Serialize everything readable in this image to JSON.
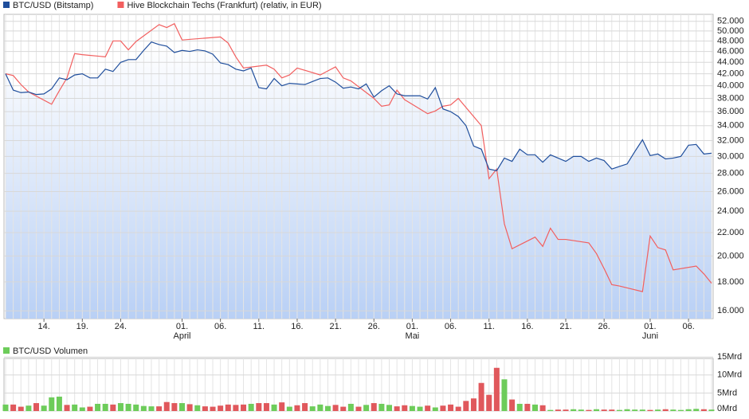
{
  "chart_data": [
    {
      "type": "line",
      "log": true,
      "grid": true,
      "area_gradient": [
        "#ffffff",
        "#b9d0f5"
      ],
      "xlim": [
        "03-09",
        "06-09"
      ],
      "ylim": [
        15500,
        53500
      ],
      "yticks": [
        {
          "value": 16000,
          "label": "16.000"
        },
        {
          "value": 18000,
          "label": "18.000"
        },
        {
          "value": 20000,
          "label": "20.000"
        },
        {
          "value": 22000,
          "label": "22.000"
        },
        {
          "value": 24000,
          "label": "24.000"
        },
        {
          "value": 26000,
          "label": "26.000"
        },
        {
          "value": 28000,
          "label": "28.000"
        },
        {
          "value": 30000,
          "label": "30.000"
        },
        {
          "value": 32000,
          "label": "32.000"
        },
        {
          "value": 34000,
          "label": "34.000"
        },
        {
          "value": 36000,
          "label": "36.000"
        },
        {
          "value": 38000,
          "label": "38.000"
        },
        {
          "value": 40000,
          "label": "40.000"
        },
        {
          "value": 42000,
          "label": "42.000"
        },
        {
          "value": 44000,
          "label": "44.000"
        },
        {
          "value": 46000,
          "label": "46.000"
        },
        {
          "value": 48000,
          "label": "48.000"
        },
        {
          "value": 50000,
          "label": "50.000"
        },
        {
          "value": 52000,
          "label": "52.000"
        }
      ],
      "xticks": [
        {
          "value": "03-14",
          "label": "14."
        },
        {
          "value": "03-19",
          "label": "19."
        },
        {
          "value": "03-24",
          "label": "24."
        },
        {
          "value": "04-01",
          "label": "01."
        },
        {
          "value": "04-06",
          "label": "06."
        },
        {
          "value": "04-11",
          "label": "11."
        },
        {
          "value": "04-16",
          "label": "16."
        },
        {
          "value": "04-21",
          "label": "21."
        },
        {
          "value": "04-26",
          "label": "26."
        },
        {
          "value": "05-01",
          "label": "01."
        },
        {
          "value": "05-06",
          "label": "06."
        },
        {
          "value": "05-11",
          "label": "11."
        },
        {
          "value": "05-16",
          "label": "16."
        },
        {
          "value": "05-21",
          "label": "21."
        },
        {
          "value": "05-26",
          "label": "26."
        },
        {
          "value": "06-01",
          "label": "01."
        },
        {
          "value": "06-06",
          "label": "06."
        }
      ],
      "month_labels": [
        {
          "value": "04-01",
          "label": "April"
        },
        {
          "value": "05-01",
          "label": "Mai"
        },
        {
          "value": "06-01",
          "label": "Juni"
        }
      ],
      "series": [
        {
          "name": "BTC/USD (Bitstamp)",
          "color": "#1f4e9c",
          "area": true,
          "x": [
            "03-09",
            "03-10",
            "03-11",
            "03-12",
            "03-13",
            "03-14",
            "03-15",
            "03-16",
            "03-17",
            "03-18",
            "03-19",
            "03-20",
            "03-21",
            "03-22",
            "03-23",
            "03-24",
            "03-25",
            "03-26",
            "03-27",
            "03-28",
            "03-29",
            "03-30",
            "03-31",
            "04-01",
            "04-02",
            "04-03",
            "04-04",
            "04-05",
            "04-06",
            "04-07",
            "04-08",
            "04-09",
            "04-10",
            "04-11",
            "04-12",
            "04-13",
            "04-14",
            "04-15",
            "04-16",
            "04-17",
            "04-18",
            "04-19",
            "04-20",
            "04-21",
            "04-22",
            "04-23",
            "04-24",
            "04-25",
            "04-26",
            "04-27",
            "04-28",
            "04-29",
            "04-30",
            "05-01",
            "05-02",
            "05-03",
            "05-04",
            "05-05",
            "05-06",
            "05-07",
            "05-08",
            "05-09",
            "05-10",
            "05-11",
            "05-12",
            "05-13",
            "05-14",
            "05-15",
            "05-16",
            "05-17",
            "05-18",
            "05-19",
            "05-20",
            "05-21",
            "05-22",
            "05-23",
            "05-24",
            "05-25",
            "05-26",
            "05-27",
            "05-28",
            "05-29",
            "05-30",
            "05-31",
            "06-01",
            "06-02",
            "06-03",
            "06-04",
            "06-05",
            "06-06",
            "06-07",
            "06-08",
            "06-09"
          ],
          "values": [
            42000,
            39300,
            38900,
            39000,
            38600,
            38700,
            39500,
            41300,
            41000,
            41800,
            42000,
            41300,
            41300,
            42800,
            42400,
            44000,
            44500,
            44500,
            46200,
            47800,
            47300,
            47000,
            45800,
            46200,
            46000,
            46300,
            46100,
            45500,
            43900,
            43600,
            42800,
            42500,
            43000,
            39700,
            39500,
            41200,
            40000,
            40400,
            40300,
            40200,
            40700,
            41200,
            41300,
            40600,
            39600,
            39800,
            39500,
            40300,
            38200,
            39200,
            40000,
            38700,
            38400,
            38400,
            38400,
            37900,
            39700,
            36400,
            36000,
            35300,
            34000,
            31300,
            30900,
            28500,
            28300,
            29800,
            29400,
            30900,
            30200,
            30200,
            29300,
            30200,
            29800,
            29400,
            30000,
            30000,
            29400,
            29800,
            29500,
            28500,
            28800,
            29100,
            30600,
            32100,
            30100,
            30300,
            29700,
            29800,
            30000,
            31400,
            31500,
            30300,
            30400
          ]
        },
        {
          "name": "Hive Blockchain Techs (Frankfurt) (relativ, in EUR)",
          "color": "#f25f5f",
          "x": [
            "03-09",
            "03-10",
            "03-11",
            "03-12",
            "03-15",
            "03-16",
            "03-17",
            "03-18",
            "03-19",
            "03-22",
            "03-23",
            "03-24",
            "03-25",
            "03-26",
            "03-29",
            "03-30",
            "03-31",
            "04-01",
            "04-06",
            "04-07",
            "04-08",
            "04-09",
            "04-12",
            "04-13",
            "04-14",
            "04-15",
            "04-16",
            "04-19",
            "04-20",
            "04-21",
            "04-22",
            "04-23",
            "04-26",
            "04-27",
            "04-28",
            "04-29",
            "04-30",
            "05-03",
            "05-04",
            "05-05",
            "05-06",
            "05-07",
            "05-10",
            "05-11",
            "05-12",
            "05-13",
            "05-14",
            "05-17",
            "05-18",
            "05-19",
            "05-20",
            "05-21",
            "05-24",
            "05-25",
            "05-26",
            "05-27",
            "05-28",
            "05-31",
            "06-01",
            "06-02",
            "06-03",
            "06-04",
            "06-07",
            "06-08",
            "06-09"
          ],
          "values": [
            42000,
            41700,
            40200,
            39000,
            37100,
            39200,
            41300,
            45600,
            45400,
            45000,
            48000,
            48000,
            46300,
            47900,
            51300,
            50700,
            51500,
            48200,
            48800,
            47600,
            45000,
            43000,
            43500,
            42800,
            41300,
            41800,
            43000,
            41800,
            42500,
            43200,
            41300,
            40800,
            38000,
            36800,
            37000,
            39300,
            37800,
            35700,
            36100,
            36800,
            37000,
            38000,
            34000,
            27400,
            28500,
            22800,
            20600,
            21600,
            20800,
            22400,
            21400,
            21400,
            21100,
            20200,
            19000,
            17800,
            17700,
            17300,
            21700,
            20700,
            20500,
            18900,
            19200,
            18600,
            17900
          ]
        }
      ]
    },
    {
      "type": "volume",
      "legend": "BTC/USD Volumen",
      "up_color": "#6dcc5a",
      "down_color": "#e0585c",
      "legend_color": "#6dcc5a",
      "xlim": [
        "03-09",
        "06-09"
      ],
      "ylim": [
        0,
        14.6
      ],
      "yticks": [
        {
          "value": 0,
          "label": "0Mrd"
        },
        {
          "value": 5,
          "label": "5Mrd"
        },
        {
          "value": 10,
          "label": "10Mrd"
        },
        {
          "value": 15,
          "label": "15Mrd"
        }
      ],
      "values": [
        1.8,
        1.8,
        1.2,
        1.5,
        2.2,
        1.5,
        3.8,
        4.0,
        1.7,
        1.8,
        1.0,
        1.2,
        2.0,
        2.0,
        1.8,
        2.2,
        2.0,
        1.8,
        1.4,
        1.3,
        1.3,
        2.5,
        2.2,
        2.2,
        1.9,
        1.6,
        1.3,
        1.2,
        1.5,
        1.8,
        1.7,
        1.8,
        2.0,
        2.2,
        2.2,
        1.8,
        2.4,
        1.2,
        1.6,
        2.2,
        1.3,
        1.8,
        1.4,
        1.7,
        1.2,
        2.0,
        1.2,
        1.7,
        2.2,
        2.0,
        1.7,
        1.3,
        1.6,
        1.4,
        1.2,
        1.5,
        1.0,
        1.5,
        1.8,
        1.2,
        2.8,
        3.5,
        7.8,
        4.5,
        12.0,
        8.8,
        3.2,
        2.0,
        2.0,
        1.8,
        1.6,
        0.3,
        0.4,
        0.4,
        0.5,
        0.4,
        0.3,
        0.5,
        0.4,
        0.4,
        0.3,
        0.5,
        0.4,
        0.4,
        0.3,
        0.4,
        0.5,
        0.4,
        0.3,
        0.5,
        0.6,
        0.5,
        0.4
      ]
    }
  ]
}
